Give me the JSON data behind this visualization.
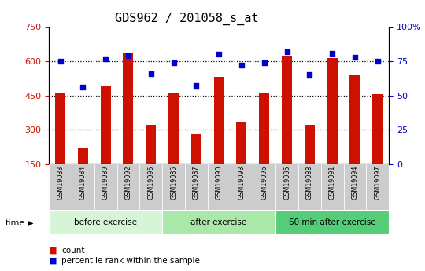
{
  "title": "GDS962 / 201058_s_at",
  "samples": [
    "GSM19083",
    "GSM19084",
    "GSM19089",
    "GSM19092",
    "GSM19095",
    "GSM19085",
    "GSM19087",
    "GSM19090",
    "GSM19093",
    "GSM19096",
    "GSM19086",
    "GSM19088",
    "GSM19091",
    "GSM19094",
    "GSM19097"
  ],
  "counts": [
    460,
    220,
    490,
    635,
    320,
    460,
    285,
    530,
    335,
    460,
    625,
    320,
    615,
    540,
    455
  ],
  "percentile_ranks": [
    75,
    56,
    77,
    79,
    66,
    74,
    57,
    80,
    72,
    74,
    82,
    65,
    81,
    78,
    75
  ],
  "groups": [
    {
      "label": "before exercise",
      "start": 0,
      "end": 5,
      "color": "#d6f5d6"
    },
    {
      "label": "after exercise",
      "start": 5,
      "end": 10,
      "color": "#aae8aa"
    },
    {
      "label": "60 min after exercise",
      "start": 10,
      "end": 15,
      "color": "#55cc77"
    }
  ],
  "bar_color": "#cc1100",
  "dot_color": "#0000cc",
  "bar_bottom": 150,
  "ylim_left": [
    150,
    750
  ],
  "ylim_right": [
    0,
    100
  ],
  "yticks_left": [
    150,
    300,
    450,
    600,
    750
  ],
  "yticks_right": [
    0,
    25,
    50,
    75,
    100
  ],
  "grid_vals": [
    300,
    450,
    600
  ],
  "grid_color": "black",
  "tick_label_color_left": "#cc1100",
  "tick_label_color_right": "#0000cc",
  "legend_count": "count",
  "legend_percentile": "percentile rank within the sample",
  "title_fontsize": 11,
  "tick_fontsize": 8,
  "label_fontsize": 8
}
